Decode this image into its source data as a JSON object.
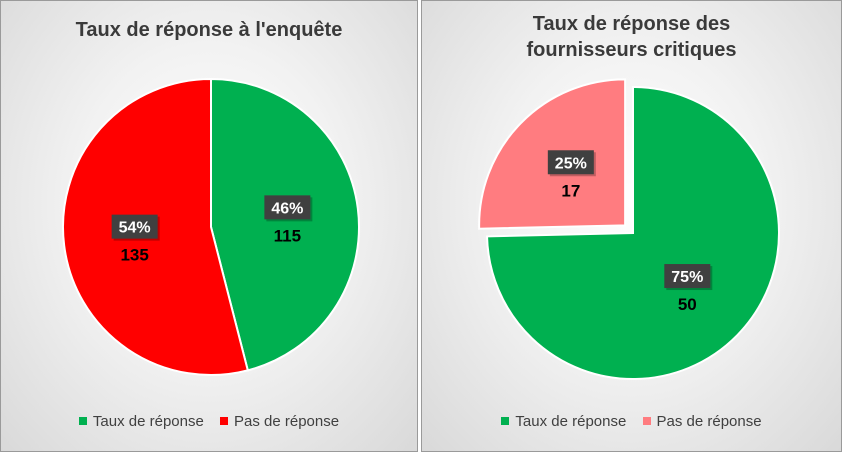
{
  "chart_data": [
    {
      "type": "pie",
      "title": "Taux de réponse à l'enquête",
      "slices": [
        {
          "label": "Taux de réponse",
          "value": 115,
          "percent_label": "46%",
          "color": "#00b050"
        },
        {
          "label": "Pas de réponse",
          "value": 135,
          "percent_label": "54%",
          "color": "#ff0000"
        }
      ],
      "legend_position": "bottom"
    },
    {
      "type": "pie",
      "title": "Taux de réponse des fournisseurs critiques",
      "slices": [
        {
          "label": "Taux de réponse",
          "value": 50,
          "percent_label": "75%",
          "color": "#00b050"
        },
        {
          "label": "Pas de réponse",
          "value": 17,
          "percent_label": "25%",
          "color": "#ff7c80"
        }
      ],
      "legend_position": "bottom"
    }
  ]
}
